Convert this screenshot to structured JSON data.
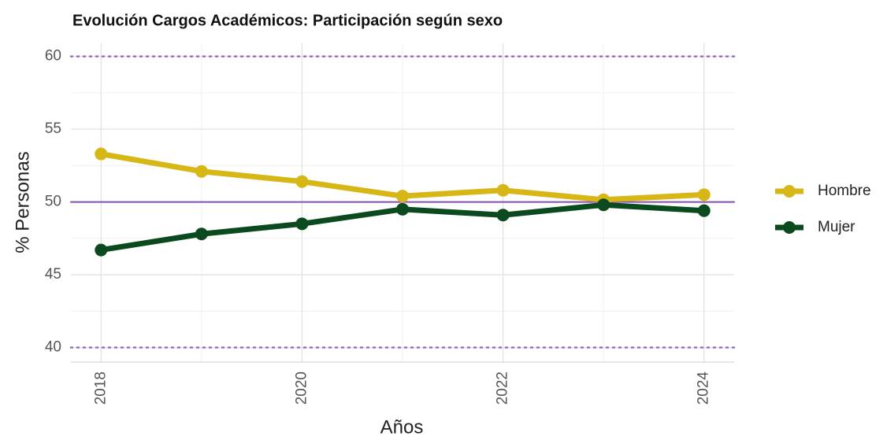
{
  "chart_data": {
    "type": "line",
    "title": "Evolución Cargos Académicos: Participación según sexo",
    "x_label": "Años",
    "y_label": "% Personas",
    "x": [
      2018,
      2019,
      2020,
      2021,
      2022,
      2023,
      2024
    ],
    "series": [
      {
        "name": "Hombre",
        "color": "#d6b716",
        "values": [
          53.3,
          52.1,
          51.4,
          50.4,
          50.8,
          50.15,
          50.5
        ]
      },
      {
        "name": "Mujer",
        "color": "#0b4a1e",
        "values": [
          46.7,
          47.8,
          48.5,
          49.5,
          49.1,
          49.8,
          49.4
        ]
      }
    ],
    "xlim": [
      2017.7,
      2024.3
    ],
    "xticks": [
      2018,
      2020,
      2022,
      2024
    ],
    "xticks_minor": [
      2019,
      2021,
      2023
    ],
    "ylim": [
      39,
      60.9
    ],
    "yticks": [
      40,
      45,
      50,
      55,
      60
    ],
    "yticks_minor": [
      42.5,
      47.5,
      52.5,
      57.5
    ],
    "grid": true,
    "reference_lines": [
      {
        "value": 50,
        "style": "solid",
        "color": "#8350b0"
      },
      {
        "value": 40,
        "style": "dotted",
        "color": "#9a6cc6"
      },
      {
        "value": 60,
        "style": "dotted",
        "color": "#9a6cc6"
      }
    ],
    "legend": "right"
  }
}
